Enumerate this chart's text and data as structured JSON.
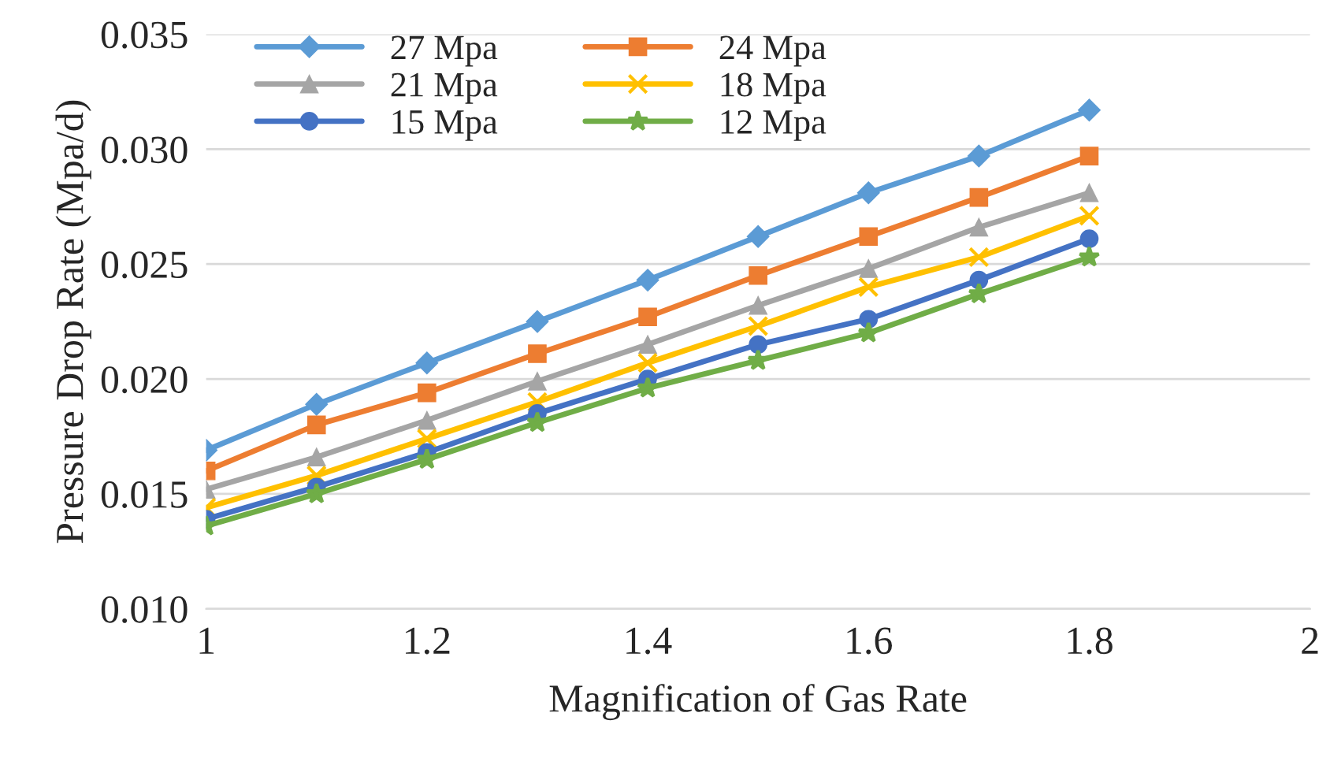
{
  "chart_data": {
    "type": "line",
    "xlabel": "Magnification of Gas Rate",
    "ylabel": "Pressure Drop Rate (Mpa/d)",
    "x": [
      1,
      1.1,
      1.2,
      1.3,
      1.4,
      1.5,
      1.6,
      1.7,
      1.8
    ],
    "xlim": [
      1,
      2
    ],
    "xticks": [
      1,
      1.2,
      1.4,
      1.6,
      1.8,
      2
    ],
    "ylim": [
      0.01,
      0.035
    ],
    "yticks": [
      {
        "value": 0.01,
        "label": "0.010"
      },
      {
        "value": 0.015,
        "label": "0.015"
      },
      {
        "value": 0.02,
        "label": "0.020"
      },
      {
        "value": 0.025,
        "label": "0.025"
      },
      {
        "value": 0.03,
        "label": "0.030"
      },
      {
        "value": 0.035,
        "label": "0.035"
      }
    ],
    "grid": "y",
    "legend": "top left",
    "series": [
      {
        "name": "27 Mpa",
        "color": "#5b9bd5",
        "marker": "diamond",
        "values": [
          0.0169,
          0.0189,
          0.0207,
          0.0225,
          0.0243,
          0.0262,
          0.0281,
          0.0297,
          0.0317
        ]
      },
      {
        "name": "24 Mpa",
        "color": "#ed7d31",
        "marker": "square",
        "values": [
          0.016,
          0.018,
          0.0194,
          0.0211,
          0.0227,
          0.0245,
          0.0262,
          0.0279,
          0.0297
        ]
      },
      {
        "name": "21 Mpa",
        "color": "#a5a5a5",
        "marker": "triangle",
        "values": [
          0.0152,
          0.0166,
          0.0182,
          0.0199,
          0.0215,
          0.0232,
          0.0248,
          0.0266,
          0.0281
        ]
      },
      {
        "name": "18 Mpa",
        "color": "#ffc000",
        "marker": "cross",
        "values": [
          0.0144,
          0.0158,
          0.0174,
          0.019,
          0.0207,
          0.0223,
          0.024,
          0.0253,
          0.0271
        ]
      },
      {
        "name": "15 Mpa",
        "color": "#4472c4",
        "marker": "circle",
        "values": [
          0.0139,
          0.0153,
          0.0168,
          0.0185,
          0.02,
          0.0215,
          0.0226,
          0.0243,
          0.0261
        ]
      },
      {
        "name": "12 Mpa",
        "color": "#70ad47",
        "marker": "star",
        "values": [
          0.0136,
          0.015,
          0.0165,
          0.0181,
          0.0196,
          0.0208,
          0.022,
          0.0237,
          0.0253
        ]
      }
    ]
  }
}
